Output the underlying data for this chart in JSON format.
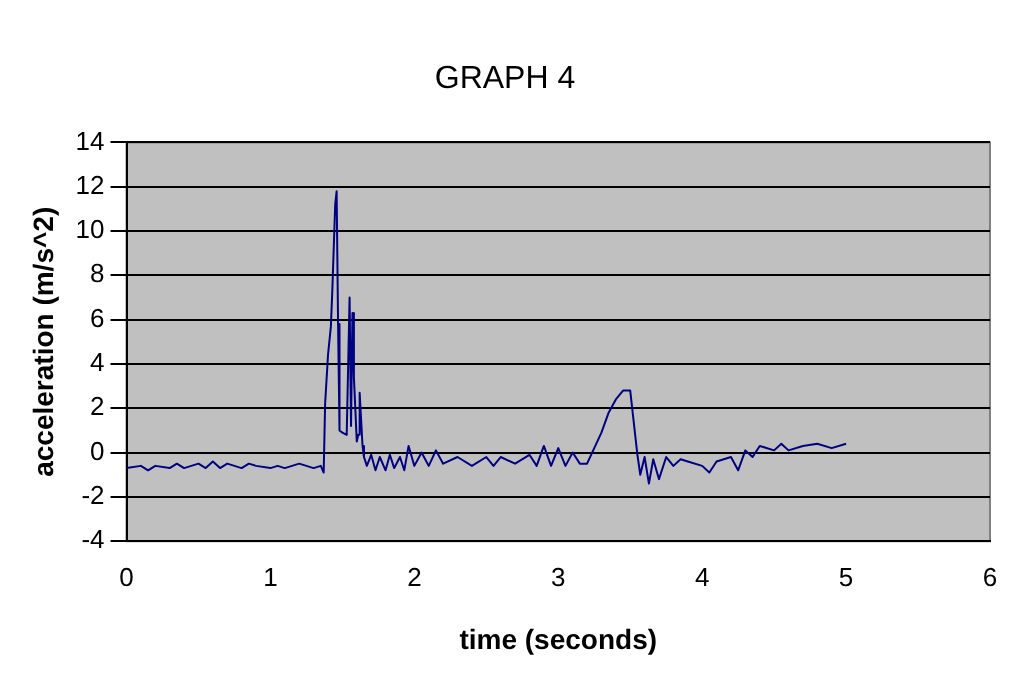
{
  "chart_data": {
    "type": "line",
    "title": "GRAPH 4",
    "xlabel": "time (seconds)",
    "ylabel": "acceleration (m/s^2)",
    "xlim": [
      0,
      6
    ],
    "xticks": [
      0,
      1,
      2,
      3,
      4,
      5,
      6
    ],
    "ylim": [
      -4,
      14
    ],
    "yticks": [
      -4,
      -2,
      0,
      2,
      4,
      6,
      8,
      10,
      12,
      14
    ],
    "grid": "y",
    "marker": "none",
    "series": [
      {
        "color": "#000080",
        "x": [
          0,
          0.1,
          0.15,
          0.2,
          0.3,
          0.35,
          0.4,
          0.5,
          0.55,
          0.6,
          0.65,
          0.7,
          0.8,
          0.85,
          0.9,
          1.0,
          1.05,
          1.1,
          1.15,
          1.2,
          1.3,
          1.35,
          1.37,
          1.38,
          1.4,
          1.42,
          1.43,
          1.45,
          1.46,
          1.47,
          1.48,
          1.5,
          1.53,
          1.55,
          1.56,
          1.57,
          1.58,
          1.6,
          1.61,
          1.62,
          1.64,
          1.65,
          1.67,
          1.7,
          1.73,
          1.76,
          1.8,
          1.83,
          1.86,
          1.9,
          1.93,
          1.96,
          2.0,
          2.05,
          2.1,
          2.15,
          2.2,
          2.3,
          2.4,
          2.5,
          2.55,
          2.6,
          2.7,
          2.8,
          2.85,
          2.9,
          2.95,
          3.0,
          3.05,
          3.1,
          3.15,
          3.2,
          3.25,
          3.3,
          3.35,
          3.4,
          3.45,
          3.5,
          3.55,
          3.57,
          3.6,
          3.63,
          3.66,
          3.7,
          3.75,
          3.8,
          3.85,
          3.9,
          4.0,
          4.05,
          4.1,
          4.2,
          4.25,
          4.3,
          4.35,
          4.4,
          4.5,
          4.55,
          4.6,
          4.7,
          4.8,
          4.9,
          5.0
        ],
        "values": [
          -0.7,
          -0.6,
          -0.8,
          -0.6,
          -0.7,
          -0.5,
          -0.7,
          -0.5,
          -0.7,
          -0.4,
          -0.7,
          -0.5,
          -0.7,
          -0.5,
          -0.6,
          -0.7,
          -0.6,
          -0.7,
          -0.6,
          -0.5,
          -0.7,
          -0.6,
          -0.9,
          2.2,
          4.4,
          5.7,
          7.3,
          11.2,
          11.8,
          5.8,
          1.0,
          0.9,
          0.8,
          7.0,
          1.2,
          6.3,
          3.4,
          0.5,
          0.8,
          2.7,
          0.3,
          -0.2,
          -0.6,
          -0.1,
          -0.8,
          -0.2,
          -0.8,
          -0.1,
          -0.7,
          -0.2,
          -0.8,
          0.3,
          -0.6,
          0.0,
          -0.6,
          0.1,
          -0.5,
          -0.2,
          -0.6,
          -0.2,
          -0.6,
          -0.2,
          -0.5,
          -0.1,
          -0.6,
          0.3,
          -0.6,
          0.2,
          -0.6,
          0.0,
          -0.5,
          -0.5,
          0.2,
          0.9,
          1.8,
          2.4,
          2.8,
          2.8,
          -0.1,
          -1.0,
          -0.2,
          -1.4,
          -0.3,
          -1.2,
          -0.2,
          -0.6,
          -0.3,
          -0.4,
          -0.6,
          -0.9,
          -0.4,
          -0.2,
          -0.8,
          0.1,
          -0.2,
          0.3,
          0.1,
          0.4,
          0.1,
          0.3,
          0.4,
          0.2,
          0.4
        ]
      }
    ]
  }
}
